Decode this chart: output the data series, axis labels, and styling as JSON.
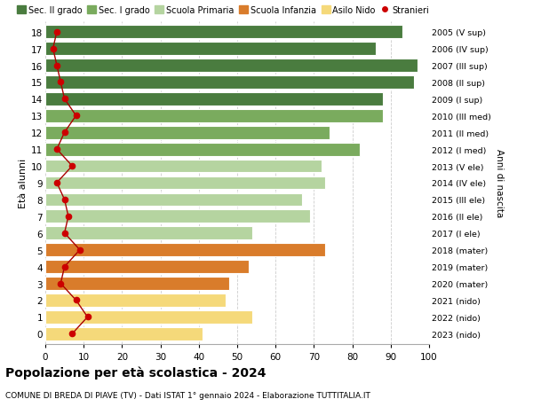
{
  "ages": [
    18,
    17,
    16,
    15,
    14,
    13,
    12,
    11,
    10,
    9,
    8,
    7,
    6,
    5,
    4,
    3,
    2,
    1,
    0
  ],
  "bar_values": [
    93,
    86,
    97,
    96,
    88,
    88,
    74,
    82,
    72,
    73,
    67,
    69,
    54,
    73,
    53,
    48,
    47,
    54,
    41
  ],
  "stranieri_values": [
    3,
    2,
    3,
    4,
    5,
    8,
    5,
    3,
    7,
    3,
    5,
    6,
    5,
    9,
    5,
    4,
    8,
    11,
    7
  ],
  "bar_colors": [
    "#4a7c3f",
    "#4a7c3f",
    "#4a7c3f",
    "#4a7c3f",
    "#4a7c3f",
    "#7aab5e",
    "#7aab5e",
    "#7aab5e",
    "#b5d4a0",
    "#b5d4a0",
    "#b5d4a0",
    "#b5d4a0",
    "#b5d4a0",
    "#d97c2b",
    "#d97c2b",
    "#d97c2b",
    "#f5d97a",
    "#f5d97a",
    "#f5d97a"
  ],
  "right_labels": [
    "2005 (V sup)",
    "2006 (IV sup)",
    "2007 (III sup)",
    "2008 (II sup)",
    "2009 (I sup)",
    "2010 (III med)",
    "2011 (II med)",
    "2012 (I med)",
    "2013 (V ele)",
    "2014 (IV ele)",
    "2015 (III ele)",
    "2016 (II ele)",
    "2017 (I ele)",
    "2018 (mater)",
    "2019 (mater)",
    "2020 (mater)",
    "2021 (nido)",
    "2022 (nido)",
    "2023 (nido)"
  ],
  "legend_labels": [
    "Sec. II grado",
    "Sec. I grado",
    "Scuola Primaria",
    "Scuola Infanzia",
    "Asilo Nido",
    "Stranieri"
  ],
  "legend_colors": [
    "#4a7c3f",
    "#7aab5e",
    "#b5d4a0",
    "#d97c2b",
    "#f5d97a",
    "#cc0000"
  ],
  "title": "Popolazione per età scolastica - 2024",
  "subtitle": "COMUNE DI BREDA DI PIAVE (TV) - Dati ISTAT 1° gennaio 2024 - Elaborazione TUTTITALIA.IT",
  "ylabel": "Età alunni",
  "right_ylabel": "Anni di nascita",
  "xlim": [
    0,
    100
  ],
  "background_color": "#ffffff",
  "bar_height": 0.78,
  "grid_color": "#cccccc",
  "stranieri_color": "#cc0000",
  "stranieri_line_color": "#aa0000"
}
